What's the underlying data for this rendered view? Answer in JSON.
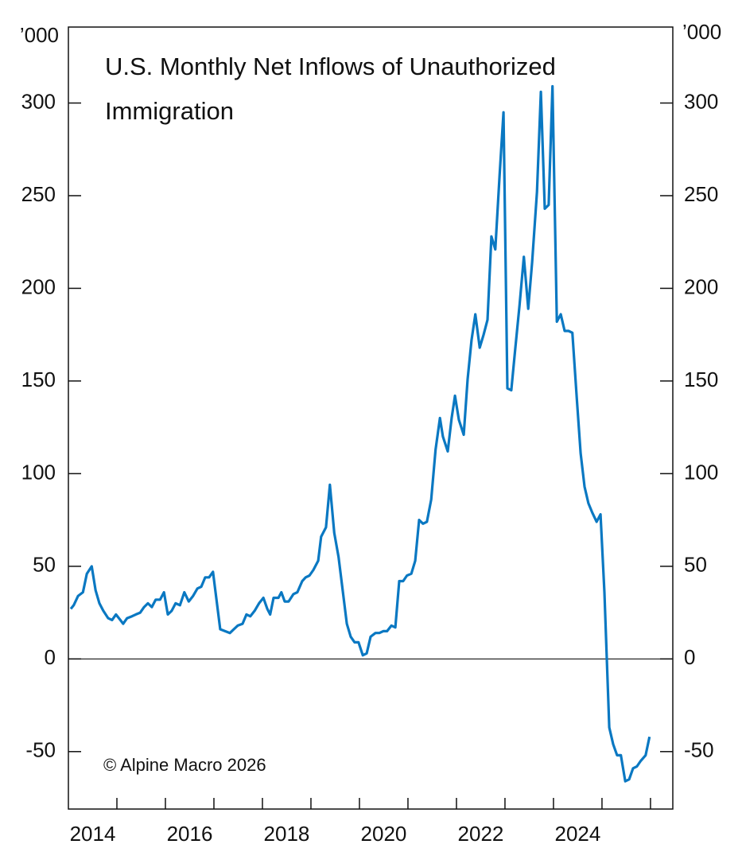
{
  "chart_data": {
    "type": "line",
    "title": "U.S. Monthly Net Inflows of Unauthorized Immigration",
    "y_unit": "’000",
    "source": "© Alpine Macro 2026",
    "xlim": [
      2014,
      2026.46
    ],
    "ylim": [
      -81,
      341
    ],
    "yticks": [
      -50,
      0,
      50,
      100,
      150,
      200,
      250,
      300
    ],
    "xticks": [
      {
        "value": 2014.5,
        "label": "2014"
      },
      {
        "value": 2016.5,
        "label": "2016"
      },
      {
        "value": 2018.5,
        "label": "2018"
      },
      {
        "value": 2020.5,
        "label": "2020"
      },
      {
        "value": 2022.5,
        "label": "2022"
      },
      {
        "value": 2024.5,
        "label": "2024"
      }
    ],
    "xminor_ticks": [
      2015,
      2016,
      2017,
      2018,
      2019,
      2020,
      2021,
      2022,
      2023,
      2024,
      2025,
      2026
    ],
    "zero_line": true,
    "series": [
      {
        "color": "#0a78c2",
        "x": [
          2014.05,
          2014.11,
          2014.2,
          2014.3,
          2014.38,
          2014.48,
          2014.56,
          2014.64,
          2014.72,
          2014.82,
          2014.9,
          2014.98,
          2015.07,
          2015.13,
          2015.21,
          2015.31,
          2015.39,
          2015.48,
          2015.56,
          2015.64,
          2015.72,
          2015.8,
          2015.89,
          2015.97,
          2016.05,
          2016.13,
          2016.21,
          2016.3,
          2016.39,
          2016.48,
          2016.57,
          2016.66,
          2016.74,
          2016.82,
          2016.9,
          2016.98,
          2017.13,
          2017.23,
          2017.33,
          2017.41,
          2017.49,
          2017.59,
          2017.67,
          2017.75,
          2017.84,
          2017.93,
          2018.02,
          2018.1,
          2018.16,
          2018.23,
          2018.33,
          2018.39,
          2018.46,
          2018.54,
          2018.64,
          2018.72,
          2018.82,
          2018.89,
          2018.97,
          2019.05,
          2019.15,
          2019.21,
          2019.31,
          2019.39,
          2019.48,
          2019.57,
          2019.66,
          2019.74,
          2019.82,
          2019.9,
          2019.98,
          2020.07,
          2020.15,
          2020.23,
          2020.33,
          2020.41,
          2020.49,
          2020.57,
          2020.66,
          2020.74,
          2020.82,
          2020.9,
          2020.98,
          2021.07,
          2021.15,
          2021.23,
          2021.31,
          2021.39,
          2021.48,
          2021.57,
          2021.66,
          2021.72,
          2021.82,
          2021.9,
          2021.97,
          2022.05,
          2022.15,
          2022.23,
          2022.31,
          2022.39,
          2022.48,
          2022.56,
          2022.64,
          2022.72,
          2022.8,
          2022.89,
          2022.97,
          2023.05,
          2023.13,
          2023.21,
          2023.3,
          2023.39,
          2023.48,
          2023.56,
          2023.66,
          2023.74,
          2023.82,
          2023.9,
          2023.98,
          2024.07,
          2024.15,
          2024.23,
          2024.31,
          2024.39,
          2024.48,
          2024.56,
          2024.64,
          2024.72,
          2024.8,
          2024.89,
          2024.97,
          2025.05,
          2025.15,
          2025.23,
          2025.31,
          2025.39,
          2025.48,
          2025.56,
          2025.64,
          2025.72,
          2025.8,
          2025.9,
          2025.98
        ],
        "values": [
          27,
          29,
          34,
          36,
          46,
          50,
          37,
          30,
          26,
          22,
          21,
          24,
          21,
          19,
          22,
          23,
          24,
          25,
          28,
          30,
          28,
          32,
          32,
          36,
          24,
          26,
          30,
          29,
          36,
          31,
          34,
          38,
          39,
          44,
          44,
          47,
          16,
          15,
          14,
          16,
          18,
          19,
          24,
          23,
          26,
          30,
          33,
          27,
          24,
          33,
          33,
          36,
          31,
          31,
          35,
          36,
          42,
          44,
          45,
          48,
          53,
          66,
          71,
          94,
          68,
          55,
          36,
          19,
          12,
          9,
          9,
          2,
          3,
          12,
          14,
          14,
          15,
          15,
          18,
          17,
          42,
          42,
          45,
          46,
          53,
          75,
          73,
          74,
          86,
          113,
          130,
          120,
          112,
          130,
          142,
          129,
          121,
          151,
          172,
          186,
          168,
          175,
          183,
          228,
          221,
          261,
          295,
          146,
          145,
          167,
          191,
          217,
          189,
          214,
          252,
          306,
          243,
          245,
          309,
          182,
          186,
          177,
          177,
          176,
          141,
          111,
          93,
          84,
          79,
          74,
          78,
          36,
          -37,
          -46,
          -52,
          -52,
          -66,
          -65,
          -59,
          -58,
          -55,
          -52,
          -42
        ]
      }
    ]
  }
}
